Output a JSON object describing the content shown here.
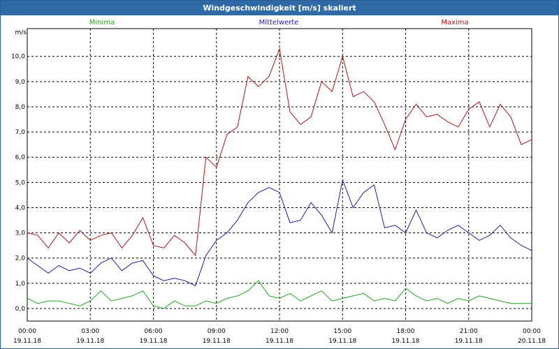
{
  "window": {
    "title": "Windgeschwindigkeit [m/s] skaliert"
  },
  "chart_data": {
    "type": "line",
    "ylabel": "m/s",
    "ylim": [
      -0.5,
      11.1
    ],
    "yticks": [
      "0,0",
      "1,0",
      "2,0",
      "3,0",
      "4,0",
      "5,0",
      "6,0",
      "7,0",
      "8,0",
      "9,0",
      "10,0"
    ],
    "ytick_values": [
      0,
      1,
      2,
      3,
      4,
      5,
      6,
      7,
      8,
      9,
      10
    ],
    "xticks": [
      {
        "time": "00:00",
        "date": "19.11.18"
      },
      {
        "time": "03:00",
        "date": "19.11.18"
      },
      {
        "time": "06:00",
        "date": "19.11.18"
      },
      {
        "time": "09:00",
        "date": "19.11.18"
      },
      {
        "time": "12:00",
        "date": "19.11.18"
      },
      {
        "time": "15:00",
        "date": "19.11.18"
      },
      {
        "time": "18:00",
        "date": "19.11.18"
      },
      {
        "time": "21:00",
        "date": "19.11.18"
      },
      {
        "time": "00:00",
        "date": "20.11.18"
      }
    ],
    "x_hours_range": [
      0,
      24
    ],
    "grid": true,
    "series": [
      {
        "name": "Minima",
        "color": "#1fa51f",
        "x": [
          0,
          0.5,
          1,
          1.5,
          2,
          2.5,
          3,
          3.5,
          4,
          4.5,
          5,
          5.5,
          6,
          6.5,
          7,
          7.5,
          8,
          8.5,
          9,
          9.5,
          10,
          10.5,
          11,
          11.5,
          12,
          12.5,
          13,
          13.5,
          14,
          14.5,
          15,
          15.5,
          16,
          16.5,
          17,
          17.5,
          18,
          18.5,
          19,
          19.5,
          20,
          20.5,
          21,
          21.5,
          22,
          22.5,
          23,
          23.5,
          24
        ],
        "values": [
          0.4,
          0.2,
          0.3,
          0.3,
          0.2,
          0.1,
          0.3,
          0.7,
          0.3,
          0.4,
          0.5,
          0.7,
          0.1,
          0.0,
          0.3,
          0.1,
          0.1,
          0.3,
          0.2,
          0.4,
          0.5,
          0.7,
          1.1,
          0.5,
          0.4,
          0.6,
          0.3,
          0.5,
          0.7,
          0.3,
          0.4,
          0.5,
          0.6,
          0.3,
          0.4,
          0.3,
          0.8,
          0.5,
          0.3,
          0.4,
          0.2,
          0.4,
          0.3,
          0.5,
          0.4,
          0.3,
          0.2,
          0.2,
          0.2
        ]
      },
      {
        "name": "Mittelwerte",
        "color": "#1c1ca8",
        "x": [
          0,
          0.5,
          1,
          1.5,
          2,
          2.5,
          3,
          3.5,
          4,
          4.5,
          5,
          5.5,
          6,
          6.5,
          7,
          7.5,
          8,
          8.5,
          9,
          9.5,
          10,
          10.5,
          11,
          11.5,
          12,
          12.5,
          13,
          13.5,
          14,
          14.5,
          15,
          15.5,
          16,
          16.5,
          17,
          17.5,
          18,
          18.5,
          19,
          19.5,
          20,
          20.5,
          21,
          21.5,
          22,
          22.5,
          23,
          23.5,
          24
        ],
        "values": [
          2.0,
          1.7,
          1.4,
          1.7,
          1.5,
          1.6,
          1.4,
          1.8,
          2.0,
          1.5,
          1.8,
          1.9,
          1.3,
          1.1,
          1.2,
          1.1,
          0.9,
          2.1,
          2.7,
          3.0,
          3.5,
          4.2,
          4.6,
          4.8,
          4.6,
          3.4,
          3.5,
          4.2,
          3.7,
          3.0,
          5.1,
          4.0,
          4.6,
          4.9,
          3.2,
          3.3,
          3.0,
          3.9,
          3.0,
          2.8,
          3.1,
          3.3,
          3.0,
          2.7,
          2.9,
          3.3,
          2.8,
          2.5,
          2.3
        ]
      },
      {
        "name": "Maxima",
        "color": "#b01515",
        "x": [
          0,
          0.5,
          1,
          1.5,
          2,
          2.5,
          3,
          3.5,
          4,
          4.5,
          5,
          5.5,
          6,
          6.5,
          7,
          7.5,
          8,
          8.5,
          9,
          9.5,
          10,
          10.5,
          11,
          11.5,
          12,
          12.5,
          13,
          13.5,
          14,
          14.5,
          15,
          15.5,
          16,
          16.5,
          17,
          17.5,
          18,
          18.5,
          19,
          19.5,
          20,
          20.5,
          21,
          21.5,
          22,
          22.5,
          23,
          23.5,
          24
        ],
        "values": [
          3.0,
          2.9,
          2.4,
          3.0,
          2.6,
          3.1,
          2.7,
          2.9,
          3.0,
          2.4,
          2.9,
          3.6,
          2.5,
          2.4,
          2.9,
          2.6,
          2.1,
          6.0,
          5.6,
          6.9,
          7.2,
          9.2,
          8.8,
          9.2,
          10.3,
          7.8,
          7.3,
          7.6,
          9.0,
          8.6,
          10.0,
          8.4,
          8.6,
          8.2,
          7.3,
          6.3,
          7.5,
          8.1,
          7.6,
          7.7,
          7.4,
          7.2,
          7.9,
          8.2,
          7.2,
          8.1,
          7.6,
          6.5,
          6.7
        ]
      }
    ]
  }
}
